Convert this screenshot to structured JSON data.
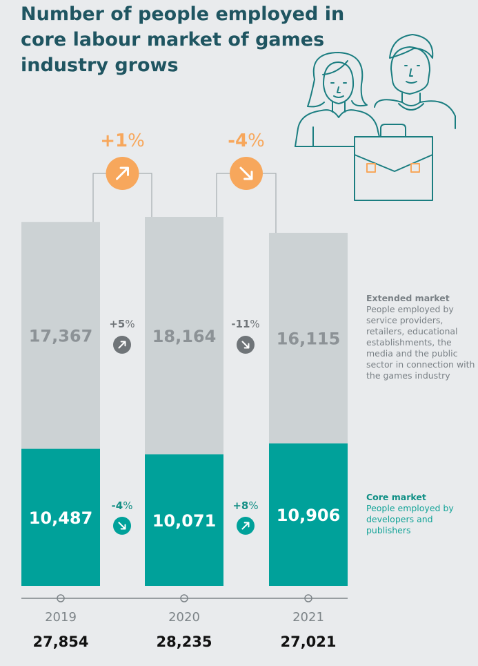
{
  "title": "Number of people employed in core labour market of games industry grows",
  "colors": {
    "extended": "#ccd2d4",
    "core": "#00a19a",
    "accent": "#f7a75c",
    "title": "#1f5561",
    "delta_gray": "#6f7478",
    "delta_teal": "#138f85"
  },
  "icons": {
    "illustration": "people-with-briefcase-icon",
    "up": "arrow-up-right-icon",
    "down": "arrow-down-right-icon"
  },
  "legend": {
    "extended": {
      "heading": "Extended market",
      "text": "People employed by service providers, retailers, educational establishments, the media and the public sector in connection with the games industry"
    },
    "core": {
      "heading": "Core market",
      "text": "People employed by developers and publishers"
    }
  },
  "chart_data": {
    "type": "bar",
    "stacked": true,
    "categories": [
      "2019",
      "2020",
      "2021"
    ],
    "series": [
      {
        "name": "Core market",
        "values": [
          10487,
          10071,
          10906
        ],
        "labels": [
          "10,487",
          "10,071",
          "10,906"
        ]
      },
      {
        "name": "Extended market",
        "values": [
          17367,
          18164,
          16115
        ],
        "labels": [
          "17,367",
          "18,164",
          "16,115"
        ]
      }
    ],
    "totals": [
      "27,854",
      "28,235",
      "27,021"
    ],
    "total_changes": [
      {
        "between": [
          "2019",
          "2020"
        ],
        "value": "+1",
        "unit": "%",
        "direction": "up"
      },
      {
        "between": [
          "2020",
          "2021"
        ],
        "value": "-4",
        "unit": "%",
        "direction": "down"
      }
    ],
    "segment_changes": {
      "extended": [
        {
          "value": "+5",
          "unit": "%",
          "direction": "up"
        },
        {
          "value": "-11",
          "unit": "%",
          "direction": "down"
        }
      ],
      "core": [
        {
          "value": "-4",
          "unit": "%",
          "direction": "down"
        },
        {
          "value": "+8",
          "unit": "%",
          "direction": "up"
        }
      ]
    }
  }
}
